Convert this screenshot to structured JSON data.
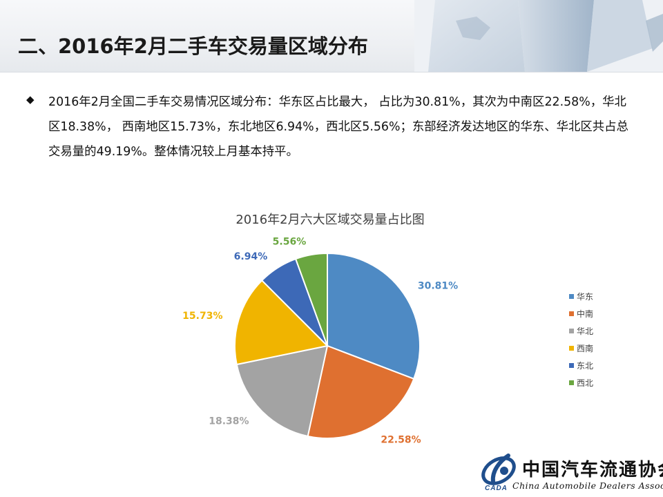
{
  "header": {
    "title": "二、2016年2月二手车交易量区域分布"
  },
  "summary": {
    "bullet_icon": "diamond-bullet-icon",
    "text": "2016年2月全国二手车交易情况区域分布：华东区占比最大， 占比为30.81%，其次为中南区22.58%，华北区18.38%， 西南地区15.73%，东北地区6.94%，西北区5.56%；东部经济发达地区的华东、华北区共占总交易量的49.19%。整体情况较上月基本持平。"
  },
  "chart_data": {
    "type": "pie",
    "title": "2016年2月六大区域交易量占比图",
    "categories": [
      "华东",
      "中南",
      "华北",
      "西南",
      "东北",
      "西北"
    ],
    "values": [
      30.81,
      22.58,
      18.38,
      15.73,
      6.94,
      5.56
    ],
    "labels": [
      "30.81%",
      "22.58%",
      "18.38%",
      "15.73%",
      "6.94%",
      "5.56%"
    ],
    "colors": [
      "#4e8ac4",
      "#df7030",
      "#a3a3a3",
      "#f0b400",
      "#3d69b7",
      "#6aa640"
    ],
    "start_angle_deg": 0,
    "direction": "clockwise",
    "legend": "right"
  },
  "footer": {
    "logo_cn": "中国汽车流通协会",
    "logo_en": "China Automobile Dealers Association",
    "logo_abbr": "CADA"
  }
}
